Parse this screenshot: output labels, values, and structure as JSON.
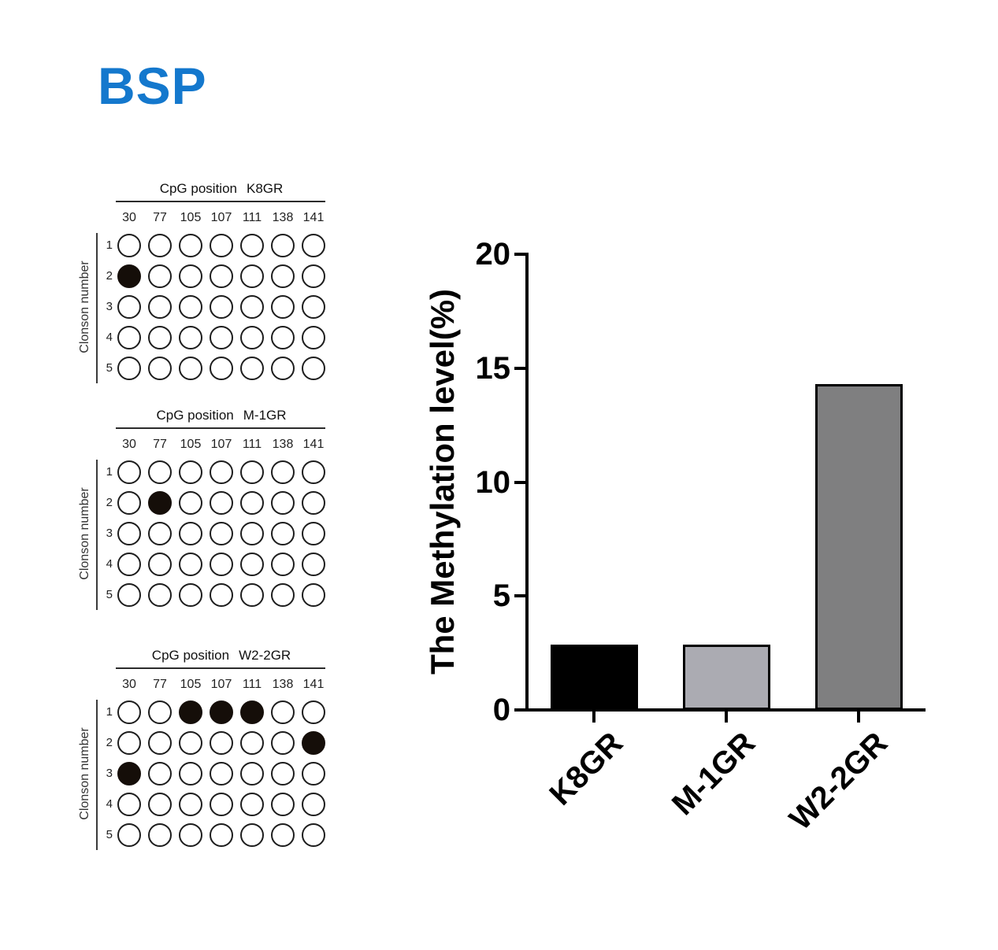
{
  "figure_title": {
    "text": "BSP",
    "color": "#1478cd"
  },
  "dot_panels": [
    {
      "title_prefix": "CpG position",
      "sample_name": "K8GR",
      "cpg_positions": [
        "30",
        "77",
        "105",
        "107",
        "111",
        "138",
        "141"
      ],
      "clone_axis_label": "Clonson number",
      "clone_numbers": [
        "1",
        "2",
        "3",
        "4",
        "5"
      ],
      "filled_cells_row_col": [
        [
          1,
          0
        ]
      ]
    },
    {
      "title_prefix": "CpG position",
      "sample_name": "M-1GR",
      "cpg_positions": [
        "30",
        "77",
        "105",
        "107",
        "111",
        "138",
        "141"
      ],
      "clone_axis_label": "Clonson number",
      "clone_numbers": [
        "1",
        "2",
        "3",
        "4",
        "5"
      ],
      "filled_cells_row_col": [
        [
          1,
          1
        ]
      ]
    },
    {
      "title_prefix": "CpG position",
      "sample_name": "W2-2GR",
      "cpg_positions": [
        "30",
        "77",
        "105",
        "107",
        "111",
        "138",
        "141"
      ],
      "clone_axis_label": "Clonson number",
      "clone_numbers": [
        "1",
        "2",
        "3",
        "4",
        "5"
      ],
      "filled_cells_row_col": [
        [
          0,
          2
        ],
        [
          0,
          3
        ],
        [
          0,
          4
        ],
        [
          1,
          6
        ],
        [
          2,
          0
        ]
      ]
    }
  ],
  "chart_data": {
    "type": "bar",
    "categories": [
      "K8GR",
      "M-1GR",
      "W2-2GR"
    ],
    "values": [
      2.86,
      2.86,
      14.29
    ],
    "title": "",
    "xlabel": "",
    "ylabel": "The Methylation level(%)",
    "ylim": [
      0,
      20
    ],
    "yticks": [
      0,
      5,
      10,
      15,
      20
    ],
    "bar_colors": [
      "#000000",
      "#ababb2",
      "#7f7f80"
    ],
    "bar_border_color": "#000000",
    "grid": false,
    "legend": false
  }
}
